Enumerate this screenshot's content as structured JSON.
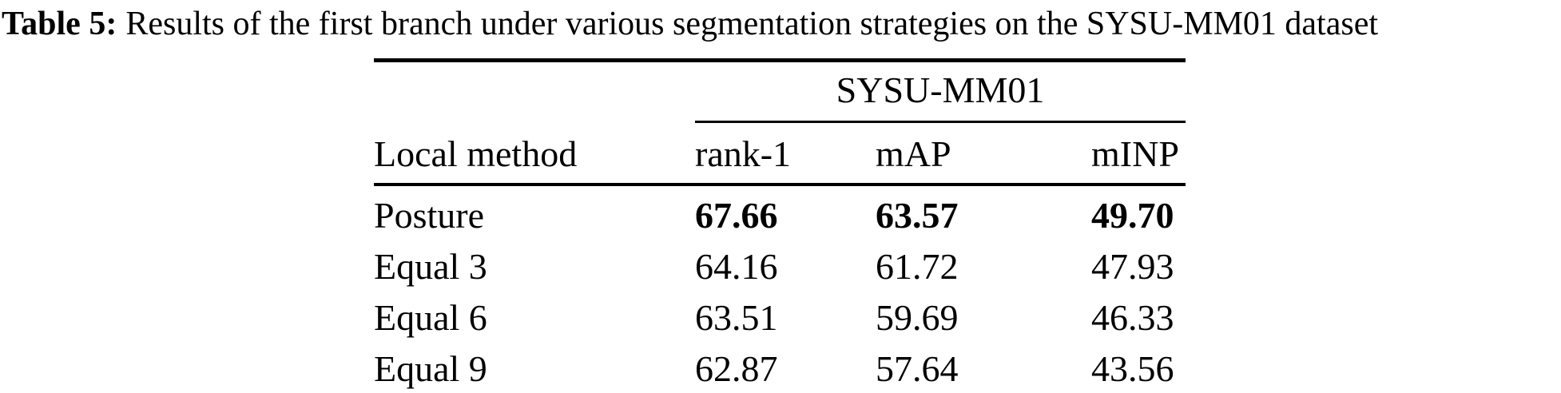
{
  "caption": {
    "label": "Table 5:",
    "text": "Results of the first branch under various segmentation strategies on the SYSU-MM01 dataset"
  },
  "table": {
    "group_header": "SYSU-MM01",
    "columns": [
      "Local method",
      "rank-1",
      "mAP",
      "mINP"
    ],
    "rows": [
      {
        "method": "Posture",
        "rank1": "67.66",
        "map": "63.57",
        "minp": "49.70",
        "best": true
      },
      {
        "method": "Equal 3",
        "rank1": "64.16",
        "map": "61.72",
        "minp": "47.93",
        "best": false
      },
      {
        "method": "Equal 6",
        "rank1": "63.51",
        "map": "59.69",
        "minp": "46.33",
        "best": false
      },
      {
        "method": "Equal 9",
        "rank1": "62.87",
        "map": "57.64",
        "minp": "43.56",
        "best": false
      }
    ]
  },
  "colors": {
    "background": "#ffffff",
    "text": "#000000",
    "rule": "#000000"
  }
}
